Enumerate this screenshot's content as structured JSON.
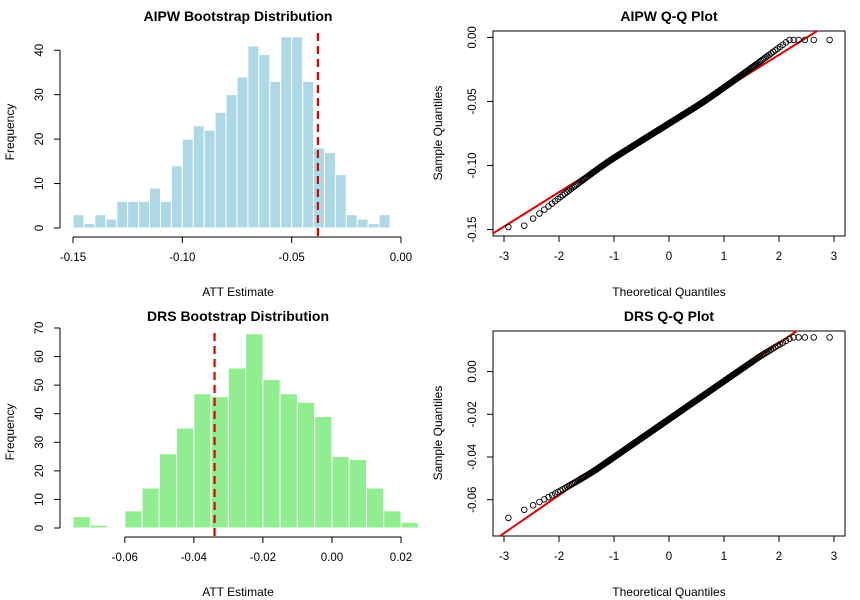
{
  "figure": {
    "background": "#ffffff"
  },
  "chart_data": [
    {
      "type": "bar",
      "id": "aipw_hist",
      "title": "AIPW Bootstrap Distribution",
      "xlabel": "ATT Estimate",
      "ylabel": "Frequency",
      "bin_width": 0.005,
      "bin_edges_start": -0.15,
      "values": [
        3,
        1,
        3,
        2,
        6,
        6,
        6,
        9,
        6,
        14,
        20,
        23,
        22,
        26,
        30,
        34,
        41,
        39,
        33,
        43,
        43,
        33,
        18,
        17,
        12,
        3,
        2,
        1,
        3
      ],
      "xlim": [
        -0.15,
        0.0
      ],
      "ylim": [
        0,
        45
      ],
      "xticks": [
        -0.15,
        -0.1,
        -0.05,
        0.0
      ],
      "xtick_labels": [
        "-0.15",
        "-0.10",
        "-0.05",
        "0.00"
      ],
      "yticks": [
        0,
        10,
        20,
        30,
        40
      ],
      "ytick_labels": [
        "0",
        "10",
        "20",
        "30",
        "40"
      ],
      "bar_color": "#add8e6",
      "reference_line": {
        "x": -0.038,
        "color": "#e00000",
        "style": "dashed"
      }
    },
    {
      "type": "scatter",
      "id": "aipw_qq",
      "title": "AIPW Q-Q Plot",
      "xlabel": "Theoretical Quantiles",
      "ylabel": "Sample Quantiles",
      "n_points": 400,
      "sample_range": [
        -0.148,
        -0.002
      ],
      "xlim": [
        -3.2,
        3.2
      ],
      "ylim": [
        -0.155,
        0.005
      ],
      "xticks": [
        -3,
        -2,
        -1,
        0,
        1,
        2,
        3
      ],
      "xtick_labels": [
        "-3",
        "-2",
        "-1",
        "0",
        "1",
        "2",
        "3"
      ],
      "yticks": [
        0.0,
        -0.05,
        -0.1,
        -0.15
      ],
      "ytick_labels": [
        "0.00",
        "-0.05",
        "-0.10",
        "-0.15"
      ],
      "qq_line": {
        "intercept": -0.0672,
        "slope": 0.0268,
        "color": "#e00000"
      }
    },
    {
      "type": "bar",
      "id": "drs_hist",
      "title": "DRS Bootstrap Distribution",
      "xlabel": "ATT Estimate",
      "ylabel": "Frequency",
      "bin_width": 0.005,
      "bin_edges_start": -0.075,
      "values": [
        4,
        1,
        0,
        6,
        14,
        26,
        35,
        47,
        46,
        56,
        68,
        52,
        47,
        44,
        39,
        25,
        24,
        14,
        6,
        2
      ],
      "xlim": [
        -0.075,
        0.02
      ],
      "ylim": [
        0,
        70
      ],
      "xticks": [
        -0.06,
        -0.04,
        -0.02,
        0.0,
        0.02
      ],
      "xtick_labels": [
        "-0.06",
        "-0.04",
        "-0.02",
        "0.00",
        "0.02"
      ],
      "yticks": [
        0,
        10,
        20,
        30,
        40,
        50,
        60,
        70
      ],
      "ytick_labels": [
        "0",
        "10",
        "20",
        "30",
        "40",
        "50",
        "60",
        "70"
      ],
      "bar_color": "#90ee90",
      "reference_line": {
        "x": -0.034,
        "color": "#e00000",
        "style": "dashed"
      }
    },
    {
      "type": "scatter",
      "id": "drs_qq",
      "title": "DRS Q-Q Plot",
      "xlabel": "Theoretical Quantiles",
      "ylabel": "Sample Quantiles",
      "n_points": 400,
      "sample_range": [
        -0.074,
        0.016
      ],
      "xlim": [
        -3.2,
        3.2
      ],
      "ylim": [
        -0.077,
        0.019
      ],
      "xticks": [
        -3,
        -2,
        -1,
        0,
        1,
        2,
        3
      ],
      "xtick_labels": [
        "-3",
        "-2",
        "-1",
        "0",
        "1",
        "2",
        "3"
      ],
      "yticks": [
        0.0,
        -0.02,
        -0.04,
        -0.06
      ],
      "ytick_labels": [
        "0.00",
        "-0.02",
        "-0.04",
        "-0.06"
      ],
      "qq_line": {
        "intercept": -0.0223,
        "slope": 0.0178,
        "color": "#e00000"
      }
    }
  ]
}
